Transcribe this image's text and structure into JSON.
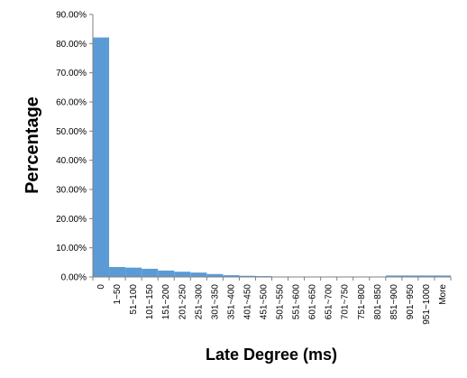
{
  "chart_data": {
    "type": "bar",
    "title": "",
    "xlabel": "Late Degree (ms)",
    "ylabel": "Percentage",
    "ylim": [
      0,
      90
    ],
    "y_tick_labels": [
      "0.00%",
      "10.00%",
      "20.00%",
      "30.00%",
      "40.00%",
      "50.00%",
      "60.00%",
      "70.00%",
      "80.00%",
      "90.00%"
    ],
    "y_tick_values": [
      0,
      10,
      20,
      30,
      40,
      50,
      60,
      70,
      80,
      90
    ],
    "grid": false,
    "legend": "none",
    "bar_color": "#5b9bd5",
    "categories": [
      "0",
      "1~50",
      "51~100",
      "101~150",
      "151~200",
      "201~250",
      "251~300",
      "301~350",
      "351~400",
      "401~450",
      "451~500",
      "501~550",
      "551~600",
      "601~650",
      "651~700",
      "701~750",
      "751~800",
      "801~850",
      "851~900",
      "901~950",
      "951~1000",
      "More"
    ],
    "values": [
      82.1,
      3.4,
      3.2,
      2.8,
      2.2,
      1.8,
      1.5,
      1.0,
      0.6,
      0.4,
      0.3,
      0.1,
      0.1,
      0.1,
      0.1,
      0.1,
      0.1,
      0.1,
      0.5,
      0.5,
      0.5,
      0.5
    ]
  }
}
